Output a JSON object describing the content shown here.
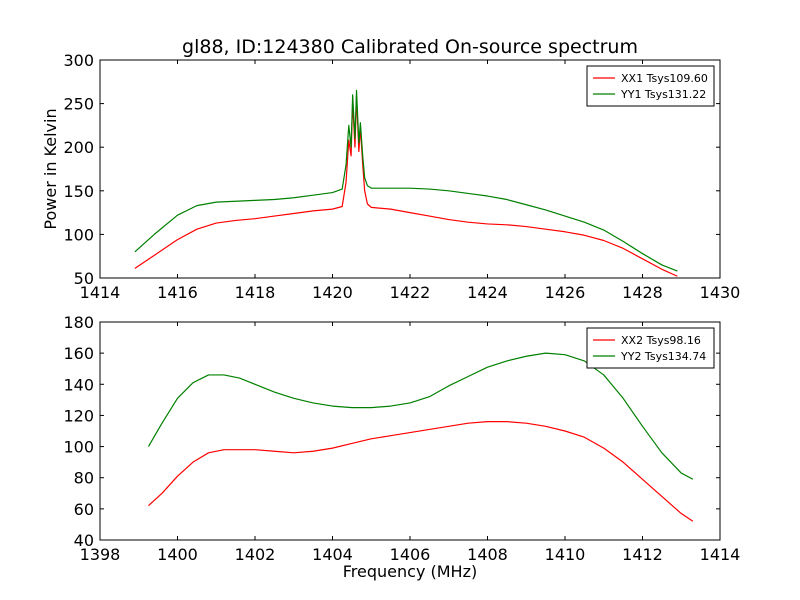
{
  "figure": {
    "title": "gl88, ID:124380 Calibrated On-source spectrum"
  },
  "chart_data": [
    {
      "type": "line",
      "title": "gl88, ID:124380 Calibrated On-source spectrum",
      "xlabel": "",
      "ylabel": "Power in Kelvin",
      "xlim": [
        1414,
        1430
      ],
      "ylim": [
        50,
        300
      ],
      "xticks": [
        "1414",
        "1416",
        "1418",
        "1420",
        "1422",
        "1424",
        "1426",
        "1428",
        "1430"
      ],
      "yticks": [
        "50",
        "100",
        "150",
        "200",
        "250",
        "300"
      ],
      "grid": false,
      "legend": "top-right",
      "series": [
        {
          "name": "XX1 Tsys109.60",
          "color": "#ff0000",
          "x": [
            1414.9,
            1415.4,
            1416.0,
            1416.5,
            1417.0,
            1417.5,
            1418.0,
            1418.5,
            1419.0,
            1419.5,
            1420.0,
            1420.25,
            1420.35,
            1420.42,
            1420.48,
            1420.52,
            1420.58,
            1420.62,
            1420.68,
            1420.72,
            1420.78,
            1420.83,
            1420.9,
            1421.0,
            1421.5,
            1422.0,
            1422.5,
            1423.0,
            1423.5,
            1424.0,
            1424.5,
            1425.0,
            1425.5,
            1426.0,
            1426.5,
            1427.0,
            1427.5,
            1428.0,
            1428.5,
            1428.9
          ],
          "y": [
            61,
            76,
            94,
            106,
            113,
            116,
            118,
            121,
            124,
            127,
            129,
            132,
            160,
            208,
            190,
            252,
            200,
            258,
            195,
            222,
            180,
            150,
            135,
            131,
            129,
            125,
            121,
            117,
            114,
            112,
            111,
            109,
            106,
            103,
            99,
            93,
            84,
            72,
            60,
            52
          ]
        },
        {
          "name": "YY1 Tsys131.22",
          "color": "#008000",
          "x": [
            1414.9,
            1415.4,
            1416.0,
            1416.5,
            1417.0,
            1417.5,
            1418.0,
            1418.5,
            1419.0,
            1419.5,
            1420.0,
            1420.25,
            1420.35,
            1420.42,
            1420.48,
            1420.52,
            1420.58,
            1420.62,
            1420.68,
            1420.72,
            1420.78,
            1420.83,
            1420.9,
            1421.0,
            1421.5,
            1422.0,
            1422.5,
            1423.0,
            1423.5,
            1424.0,
            1424.5,
            1425.0,
            1425.5,
            1426.0,
            1426.5,
            1427.0,
            1427.5,
            1428.0,
            1428.5,
            1428.9
          ],
          "y": [
            80,
            100,
            122,
            133,
            137,
            138,
            139,
            140,
            142,
            145,
            148,
            152,
            180,
            225,
            200,
            260,
            210,
            265,
            205,
            228,
            190,
            165,
            156,
            153,
            153,
            153,
            152,
            150,
            147,
            144,
            140,
            134,
            128,
            121,
            114,
            105,
            92,
            78,
            65,
            58
          ]
        }
      ]
    },
    {
      "type": "line",
      "title": "",
      "xlabel": "Frequency (MHz)",
      "ylabel": "",
      "xlim": [
        1398,
        1414
      ],
      "ylim": [
        40,
        180
      ],
      "xticks": [
        "1398",
        "1400",
        "1402",
        "1404",
        "1406",
        "1408",
        "1410",
        "1412",
        "1414"
      ],
      "yticks": [
        "40",
        "60",
        "80",
        "100",
        "120",
        "140",
        "160",
        "180"
      ],
      "grid": false,
      "legend": "top-right",
      "series": [
        {
          "name": "XX2 Tsys98.16",
          "color": "#ff0000",
          "x": [
            1399.25,
            1399.6,
            1400.0,
            1400.4,
            1400.8,
            1401.2,
            1401.6,
            1402.0,
            1402.5,
            1403.0,
            1403.5,
            1404.0,
            1404.5,
            1405.0,
            1405.5,
            1406.0,
            1406.5,
            1407.0,
            1407.5,
            1408.0,
            1408.5,
            1409.0,
            1409.5,
            1410.0,
            1410.5,
            1411.0,
            1411.5,
            1412.0,
            1412.5,
            1413.0,
            1413.3
          ],
          "y": [
            62,
            70,
            81,
            90,
            96,
            98,
            98,
            98,
            97,
            96,
            97,
            99,
            102,
            105,
            107,
            109,
            111,
            113,
            115,
            116,
            116,
            115,
            113,
            110,
            106,
            99,
            90,
            79,
            68,
            57,
            52
          ]
        },
        {
          "name": "YY2 Tsys134.74",
          "color": "#008000",
          "x": [
            1399.25,
            1399.6,
            1400.0,
            1400.4,
            1400.8,
            1401.2,
            1401.6,
            1402.0,
            1402.5,
            1403.0,
            1403.5,
            1404.0,
            1404.5,
            1405.0,
            1405.5,
            1406.0,
            1406.5,
            1407.0,
            1407.5,
            1408.0,
            1408.5,
            1409.0,
            1409.5,
            1410.0,
            1410.5,
            1411.0,
            1411.5,
            1412.0,
            1412.5,
            1413.0,
            1413.3
          ],
          "y": [
            100,
            115,
            131,
            141,
            146,
            146,
            144,
            140,
            135,
            131,
            128,
            126,
            125,
            125,
            126,
            128,
            132,
            139,
            145,
            151,
            155,
            158,
            160,
            159,
            155,
            146,
            131,
            113,
            96,
            83,
            79
          ]
        }
      ]
    }
  ]
}
